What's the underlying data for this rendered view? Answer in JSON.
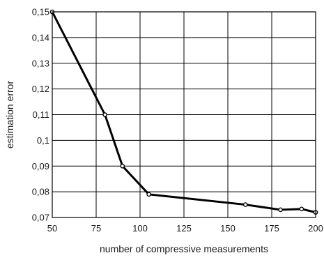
{
  "chart_data": {
    "type": "line",
    "title": "",
    "xlabel": "number of compressive measurements",
    "ylabel": "estimation error",
    "xlim": [
      50,
      200
    ],
    "ylim": [
      0.07,
      0.15
    ],
    "grid": true,
    "legend": "none",
    "line_color": "#000000",
    "x_ticks": [
      {
        "value": 50,
        "label": "50"
      },
      {
        "value": 75,
        "label": "75"
      },
      {
        "value": 100,
        "label": "100"
      },
      {
        "value": 125,
        "label": "125"
      },
      {
        "value": 150,
        "label": "150"
      },
      {
        "value": 175,
        "label": "175"
      },
      {
        "value": 200,
        "label": "200"
      }
    ],
    "y_ticks": [
      {
        "value": 0.07,
        "label": "0,07"
      },
      {
        "value": 0.08,
        "label": "0,08"
      },
      {
        "value": 0.09,
        "label": "0,09"
      },
      {
        "value": 0.1,
        "label": "0,1"
      },
      {
        "value": 0.11,
        "label": "0,11"
      },
      {
        "value": 0.12,
        "label": "0,12"
      },
      {
        "value": 0.13,
        "label": "0,13"
      },
      {
        "value": 0.14,
        "label": "0,14"
      },
      {
        "value": 0.15,
        "label": "0,15"
      }
    ],
    "series": [
      {
        "x": [
          50,
          80,
          90,
          105,
          160,
          180,
          192,
          200
        ],
        "y": [
          0.15,
          0.11,
          0.09,
          0.079,
          0.075,
          0.073,
          0.0733,
          0.072
        ]
      }
    ]
  }
}
